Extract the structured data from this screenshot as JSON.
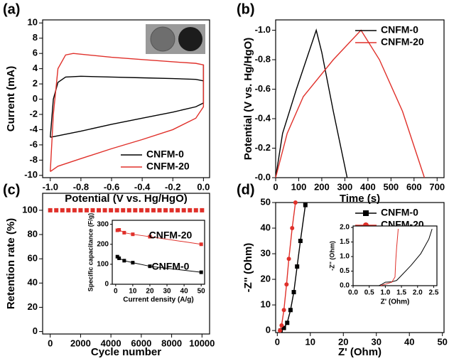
{
  "chart_data": [
    {
      "type": "line",
      "panel_label": "(a)",
      "xlabel": "Potential (V vs. Hg/HgO)",
      "ylabel": "Current (mA)",
      "xlim": [
        -1.05,
        0.04
      ],
      "ylim": [
        -10.3,
        10.4
      ],
      "xticks": [
        {
          "value": -1,
          "label": "-1.0"
        },
        -0.8,
        -0.6,
        -0.4,
        -0.2,
        {
          "value": 0,
          "label": "0.0"
        }
      ],
      "yticks": [
        -10,
        -8,
        -6,
        -4,
        -2,
        0,
        2,
        4,
        6,
        8,
        10
      ],
      "legend": "lower right",
      "series": [
        {
          "name": "CNFM-0",
          "color": "#000000",
          "x": [
            -1.0,
            -0.98,
            -0.95,
            -0.9,
            -0.8,
            -0.6,
            -0.4,
            -0.2,
            -0.05,
            0.0,
            0.0,
            0.0,
            -0.05,
            -0.2,
            -0.4,
            -0.6,
            -0.8,
            -0.95,
            -1.0
          ],
          "values": [
            -5,
            0,
            2.2,
            2.9,
            3.0,
            2.9,
            2.8,
            2.7,
            2.6,
            2.4,
            4.5,
            -0.5,
            -1.0,
            -1.7,
            -2.5,
            -3.3,
            -4.2,
            -4.8,
            -5
          ]
        },
        {
          "name": "CNFM-20",
          "color": "#e0302a",
          "x": [
            -1.0,
            -0.98,
            -0.95,
            -0.9,
            -0.85,
            -0.6,
            -0.4,
            -0.2,
            -0.05,
            0.0,
            0.0,
            -0.05,
            -0.2,
            -0.4,
            -0.6,
            -0.8,
            -0.95,
            -1.0
          ],
          "values": [
            -9.5,
            -2,
            4,
            5.8,
            6.0,
            5.5,
            5.2,
            4.9,
            4.7,
            4.5,
            -1,
            -2.5,
            -4,
            -5.3,
            -6.5,
            -7.8,
            -8.8,
            -9.5
          ]
        }
      ]
    },
    {
      "type": "line",
      "panel_label": "(b)",
      "xlabel": "Time (s)",
      "ylabel": "Potential (V vs. Hg/HgO)",
      "xlim": [
        0,
        730
      ],
      "ylim": [
        0,
        -1.07
      ],
      "xticks": [
        0,
        100,
        200,
        300,
        400,
        500,
        600,
        700
      ],
      "yticks": [
        {
          "value": -1,
          "label": "-1.0"
        },
        -0.8,
        -0.6,
        -0.4,
        -0.2,
        {
          "value": 0,
          "label": "-0.0"
        }
      ],
      "legend": "upper right",
      "series": [
        {
          "name": "CNFM-0",
          "color": "#000000",
          "x": [
            0,
            30,
            90,
            176,
            200,
            250,
            310
          ],
          "values": [
            0,
            -0.3,
            -0.6,
            -1.0,
            -0.85,
            -0.45,
            0
          ]
        },
        {
          "name": "CNFM-20",
          "color": "#e0302a",
          "x": [
            0,
            50,
            120,
            250,
            370,
            450,
            550,
            645
          ],
          "values": [
            0,
            -0.3,
            -0.55,
            -0.8,
            -1.0,
            -0.8,
            -0.45,
            0
          ]
        }
      ]
    },
    {
      "type": "line",
      "panel_label": "(c)",
      "xlabel": "Cycle number",
      "ylabel": "Retention rate (%)",
      "xlim": [
        -500,
        10500
      ],
      "ylim": [
        -2,
        114
      ],
      "xticks": [
        0,
        2000,
        4000,
        6000,
        8000,
        10000
      ],
      "yticks": [
        0,
        20,
        40,
        60,
        80,
        100
      ],
      "series": [
        {
          "color": "#e0302a",
          "marker": "square",
          "line": false,
          "x": [
            0,
            400,
            800,
            1200,
            1600,
            2000,
            2400,
            2800,
            3200,
            3600,
            4000,
            4400,
            4800,
            5200,
            5600,
            6000,
            6400,
            6800,
            7200,
            7600,
            8000,
            8400,
            8800,
            9200,
            9600,
            10000
          ],
          "values": [
            100,
            100,
            100,
            100,
            100,
            100,
            100,
            100,
            100,
            100,
            100,
            100,
            100,
            100,
            100,
            100,
            100,
            100,
            100,
            100,
            100,
            100,
            100,
            100,
            100,
            100
          ]
        }
      ]
    },
    {
      "type": "line",
      "xlabel": "Current density (A/g)",
      "ylabel": "Specific capacitance (F/g)",
      "xlim": [
        -2,
        52
      ],
      "ylim": [
        0,
        320
      ],
      "xticks": [
        0,
        10,
        20,
        30,
        40,
        50
      ],
      "yticks": [
        0,
        100,
        200,
        300
      ],
      "annotations": [
        "CNFM-20",
        "CNFM-0"
      ],
      "series": [
        {
          "color": "#e0302a",
          "marker": "square",
          "x": [
            1,
            2,
            5,
            10,
            20,
            50
          ],
          "values": [
            270,
            272,
            258,
            250,
            238,
            200
          ]
        },
        {
          "color": "#000000",
          "marker": "square",
          "x": [
            1,
            2,
            5,
            10,
            20,
            50
          ],
          "values": [
            138,
            130,
            118,
            108,
            90,
            60
          ]
        }
      ]
    },
    {
      "type": "line",
      "panel_label": "(d)",
      "xlabel": "Z' (Ohm)",
      "ylabel": "-Z'' (Ohm)",
      "xlim": [
        -0.5,
        50.5
      ],
      "ylim": [
        -0.8,
        50
      ],
      "xticks": [
        0,
        10,
        20,
        30,
        40,
        50
      ],
      "yticks": [
        0,
        10,
        20,
        30,
        40,
        50
      ],
      "legend": "upper right",
      "series": [
        {
          "name": "CNFM-0",
          "color": "#000000",
          "marker": "square",
          "x": [
            1.0,
            2.0,
            3.0,
            4.0,
            5.0,
            6.0,
            7.0,
            8.5
          ],
          "values": [
            0,
            1,
            3,
            8,
            15,
            25,
            35,
            49
          ]
        },
        {
          "name": "CNFM-20",
          "color": "#e0302a",
          "marker": "circle",
          "x": [
            0.8,
            1.3,
            2.0,
            2.8,
            3.5,
            4.5,
            5.5
          ],
          "values": [
            0,
            2,
            8,
            18,
            28,
            40,
            50
          ]
        }
      ]
    },
    {
      "type": "line",
      "xlabel": "Z' (Ohm)",
      "ylabel": "-Z'' (Ohm)",
      "xlim": [
        0,
        2.6
      ],
      "ylim": [
        0,
        2.05
      ],
      "xticks": [
        {
          "value": 0,
          "label": "0.0"
        },
        0.5,
        {
          "value": 1,
          "label": "1.0"
        },
        1.5,
        {
          "value": 2,
          "label": "2.0"
        },
        2.5
      ],
      "yticks": [
        {
          "value": 0,
          "label": "0.0"
        },
        0.5,
        {
          "value": 1,
          "label": "1.0"
        },
        1.5,
        {
          "value": 2,
          "label": "2.0"
        }
      ],
      "series": [
        {
          "color": "#000000",
          "x": [
            0.8,
            0.9,
            1.0,
            1.2,
            1.35,
            1.5,
            1.8,
            2.1,
            2.35,
            2.45
          ],
          "values": [
            0,
            0.05,
            0.12,
            0.13,
            0.18,
            0.35,
            0.7,
            1.1,
            1.6,
            1.95
          ]
        },
        {
          "color": "#e0302a",
          "x": [
            0.85,
            1.0,
            1.2,
            1.3,
            1.32,
            1.35,
            1.4
          ],
          "values": [
            0,
            0.05,
            0.12,
            0.3,
            0.8,
            1.3,
            1.95
          ]
        }
      ]
    }
  ]
}
